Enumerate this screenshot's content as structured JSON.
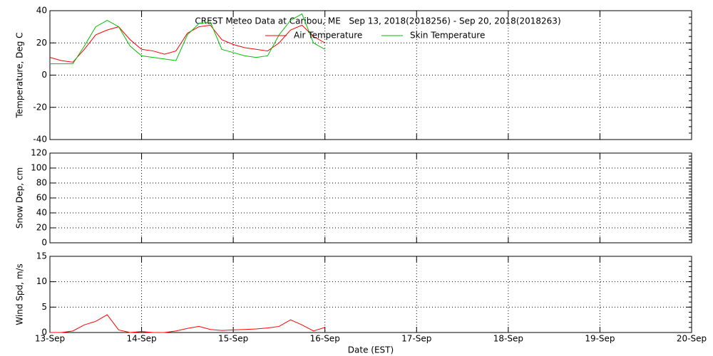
{
  "chart_data": [
    {
      "type": "line",
      "title": "CREST Meteo Data at Caribou, ME   Sep 13, 2018(2018256) - Sep 20, 2018(2018263)",
      "ylabel": "Temperature, Deg C",
      "xlim": [
        0,
        7
      ],
      "ylim": [
        -40,
        40
      ],
      "yticks": [
        -40,
        -20,
        0,
        20,
        40
      ],
      "grid": true,
      "legend": "top",
      "x": [
        0,
        0.125,
        0.25,
        0.375,
        0.5,
        0.625,
        0.75,
        0.875,
        1,
        1.125,
        1.25,
        1.375,
        1.5,
        1.625,
        1.75,
        1.875,
        2,
        2.125,
        2.25,
        2.375,
        2.5,
        2.625,
        2.75,
        2.875,
        3
      ],
      "series": [
        {
          "name": "Air Temperature",
          "color": "#ff0000",
          "values": [
            11,
            9,
            8,
            16,
            25,
            28,
            30,
            22,
            16,
            15,
            13,
            15,
            26,
            30,
            31,
            22,
            19,
            17,
            16,
            15,
            20,
            28,
            31,
            24,
            20
          ]
        },
        {
          "name": "Skin Temperature",
          "color": "#00c000",
          "values": [
            7,
            7,
            7,
            18,
            30,
            34,
            30,
            18,
            12,
            11,
            10,
            9,
            25,
            32,
            33,
            16,
            14,
            12,
            11,
            12,
            25,
            34,
            38,
            20,
            16
          ]
        }
      ]
    },
    {
      "type": "line",
      "ylabel": "Snow Dep, cm",
      "xlim": [
        0,
        7
      ],
      "ylim": [
        0,
        120
      ],
      "yticks": [
        0,
        20,
        40,
        60,
        80,
        100,
        120
      ],
      "grid": true,
      "series": []
    },
    {
      "type": "line",
      "ylabel": "Wind Spd, m/s",
      "xlabel": "Date (EST)",
      "xlim": [
        0,
        7
      ],
      "ylim": [
        0,
        15
      ],
      "yticks": [
        0,
        5,
        10,
        15
      ],
      "grid": true,
      "xticks": [
        {
          "value": 0,
          "label": "13-Sep"
        },
        {
          "value": 1,
          "label": "14-Sep"
        },
        {
          "value": 2,
          "label": "15-Sep"
        },
        {
          "value": 3,
          "label": "16-Sep"
        },
        {
          "value": 4,
          "label": "17-Sep"
        },
        {
          "value": 5,
          "label": "18-Sep"
        },
        {
          "value": 6,
          "label": "19-Sep"
        },
        {
          "value": 7,
          "label": "20-Sep"
        }
      ],
      "x": [
        0,
        0.125,
        0.25,
        0.375,
        0.5,
        0.625,
        0.75,
        0.875,
        1,
        1.125,
        1.25,
        1.375,
        1.5,
        1.625,
        1.75,
        1.875,
        2,
        2.125,
        2.25,
        2.375,
        2.5,
        2.625,
        2.75,
        2.875,
        3
      ],
      "series": [
        {
          "color": "#ff0000",
          "values": [
            0,
            0,
            0.3,
            1.5,
            2.2,
            3.5,
            0.5,
            0,
            0.2,
            0,
            0,
            0.3,
            0.8,
            1.2,
            0.6,
            0.4,
            0.5,
            0.6,
            0.7,
            0.9,
            1.2,
            2.5,
            1.5,
            0.3,
            1.0
          ]
        }
      ]
    }
  ]
}
